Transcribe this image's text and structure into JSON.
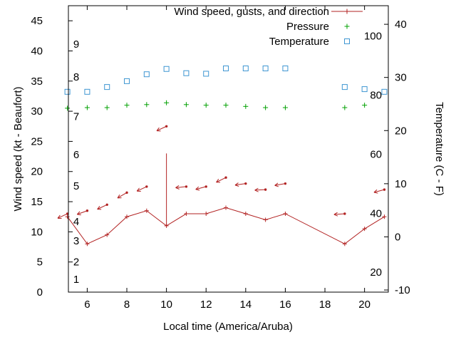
{
  "colors": {
    "wind": "#b22222",
    "pressure": "#00a000",
    "temperature": "#3e96d2",
    "axis": "#000000",
    "background": "#ffffff"
  },
  "chart_data": {
    "type": "line",
    "title": "",
    "xlabel": "Local time (America/Aruba)",
    "ylabel_left": "Wind speed (kt - Beaufort)",
    "ylabel_right": "Temperature (C - F)",
    "x_range": [
      5.05,
      21.2
    ],
    "y_left_range": [
      0,
      47.5
    ],
    "y_right_range": [
      -10.4,
      43.5
    ],
    "x_ticks": [
      6,
      8,
      10,
      12,
      14,
      16,
      18,
      20
    ],
    "y_left_ticks": [
      0,
      5,
      10,
      15,
      20,
      25,
      30,
      35,
      40,
      45
    ],
    "y_right_ticks": [
      -10,
      0,
      10,
      20,
      30,
      40
    ],
    "grid": false,
    "legend_position": "top-right-inside",
    "beaufort_labels": [
      {
        "label": "1",
        "kt": 2.1
      },
      {
        "label": "2",
        "kt": 5.0
      },
      {
        "label": "3",
        "kt": 8.5
      },
      {
        "label": "4",
        "kt": 11.7
      },
      {
        "label": "5",
        "kt": 17.6
      },
      {
        "label": "6",
        "kt": 22.8
      },
      {
        "label": "7",
        "kt": 29.1
      },
      {
        "label": "8",
        "kt": 35.7
      },
      {
        "label": "9",
        "kt": 41.1
      }
    ],
    "fahrenheit_labels": [
      {
        "label": "20",
        "f": 20
      },
      {
        "label": "40",
        "f": 40
      },
      {
        "label": "60",
        "f": 60
      },
      {
        "label": "80",
        "f": 80
      },
      {
        "label": "100",
        "f": 100
      }
    ],
    "legend": [
      {
        "label": "Wind speed, gusts, and direction",
        "series": "wind",
        "marker": "line-plus"
      },
      {
        "label": "Pressure",
        "series": "pressure",
        "marker": "plus"
      },
      {
        "label": "Temperature",
        "series": "temperature",
        "marker": "square"
      }
    ],
    "wind": {
      "name": "Wind speed (kt)",
      "axis": "left",
      "x": [
        5,
        6,
        7,
        8,
        9,
        10,
        11,
        12,
        13,
        14,
        15,
        16,
        19,
        20,
        21
      ],
      "values": [
        12.5,
        8,
        9.5,
        12.5,
        13.5,
        11,
        13,
        13,
        14,
        13,
        12,
        13,
        8,
        10.5,
        12.5
      ]
    },
    "gust_bars": [
      {
        "x": 10,
        "from": 11,
        "to": 23
      }
    ],
    "wind_arrows": [
      {
        "x": 5,
        "kt": 13,
        "angle": 205
      },
      {
        "x": 6,
        "kt": 13.5,
        "angle": 200
      },
      {
        "x": 7,
        "kt": 14.5,
        "angle": 205
      },
      {
        "x": 8,
        "kt": 16.5,
        "angle": 210
      },
      {
        "x": 9,
        "kt": 17.5,
        "angle": 205
      },
      {
        "x": 10,
        "kt": 27.5,
        "angle": 205
      },
      {
        "x": 11,
        "kt": 17.5,
        "angle": 186
      },
      {
        "x": 12,
        "kt": 17.5,
        "angle": 195
      },
      {
        "x": 13,
        "kt": 19,
        "angle": 206
      },
      {
        "x": 14,
        "kt": 18,
        "angle": 188
      },
      {
        "x": 15,
        "kt": 17,
        "angle": 183
      },
      {
        "x": 16,
        "kt": 18,
        "angle": 190
      },
      {
        "x": 19,
        "kt": 13,
        "angle": 184
      },
      {
        "x": 21,
        "kt": 17,
        "angle": 195
      }
    ],
    "pressure": {
      "name": "Pressure",
      "axis": "left",
      "x": [
        5,
        6,
        7,
        8,
        9,
        10,
        11,
        12,
        13,
        14,
        15,
        16,
        19,
        20
      ],
      "values": [
        30.5,
        30.6,
        30.6,
        31.0,
        31.1,
        31.4,
        31.1,
        31.0,
        31.0,
        30.8,
        30.6,
        30.6,
        30.6,
        31.0
      ]
    },
    "temperature": {
      "name": "Temperature (C)",
      "axis": "right",
      "x": [
        5,
        6,
        7,
        8,
        9,
        10,
        11,
        12,
        13,
        14,
        15,
        16,
        19,
        20,
        21
      ],
      "values": [
        27.3,
        27.3,
        28.2,
        29.3,
        30.6,
        31.6,
        30.8,
        30.7,
        31.7,
        31.7,
        31.7,
        31.7,
        28.2,
        27.8,
        27.3
      ]
    }
  }
}
